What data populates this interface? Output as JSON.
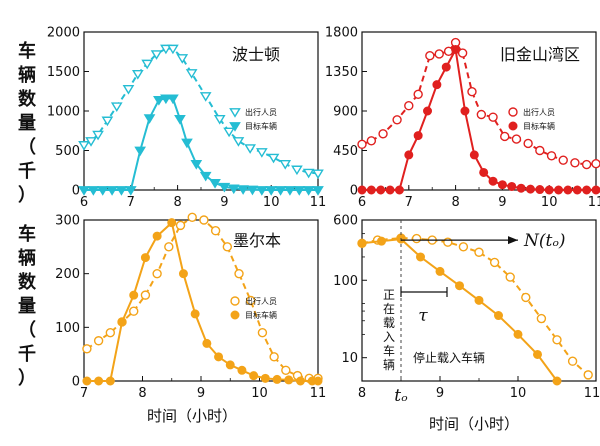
{
  "figure": {
    "y_label_chars": [
      "车",
      "辆",
      "数",
      "量",
      "（",
      "千",
      "）"
    ],
    "x_label": "时间（小时）"
  },
  "chart_data": [
    {
      "type": "line",
      "title": "波士顿",
      "color": "#25BDD3",
      "xlim": [
        6,
        11
      ],
      "ylim": [
        0,
        2000
      ],
      "x_ticks": [
        6,
        7,
        8,
        9,
        10,
        11
      ],
      "y_ticks": [
        0,
        500,
        1000,
        1500,
        2000
      ],
      "marker": "triangle",
      "legend_position": "right",
      "series": [
        {
          "name": "出行人员",
          "style": "dashed-open",
          "x": [
            6.0,
            6.15,
            6.3,
            6.5,
            6.7,
            6.95,
            7.15,
            7.35,
            7.55,
            7.75,
            7.9,
            8.1,
            8.3,
            8.6,
            8.9,
            9.1,
            9.3,
            9.55,
            9.8,
            10.05,
            10.3,
            10.55,
            10.8,
            11.0
          ],
          "y": [
            570,
            620,
            700,
            880,
            1060,
            1280,
            1470,
            1600,
            1720,
            1790,
            1790,
            1670,
            1480,
            1190,
            900,
            740,
            620,
            530,
            480,
            410,
            330,
            260,
            220,
            210
          ]
        },
        {
          "name": "目标车辆",
          "style": "solid-filled",
          "x": [
            6.0,
            6.2,
            6.4,
            6.6,
            6.8,
            7.0,
            7.2,
            7.4,
            7.6,
            7.75,
            7.9,
            8.05,
            8.2,
            8.4,
            8.6,
            8.8,
            9.0,
            9.2,
            9.4,
            9.6,
            9.8,
            10.0,
            10.2,
            10.4,
            10.6,
            10.8,
            11.0
          ],
          "y": [
            0,
            0,
            0,
            0,
            0,
            0,
            500,
            910,
            1140,
            1160,
            1160,
            900,
            600,
            330,
            180,
            90,
            40,
            20,
            10,
            5,
            0,
            0,
            0,
            0,
            0,
            0,
            0
          ]
        }
      ]
    },
    {
      "type": "line",
      "title": "旧金山湾区",
      "color": "#E0201F",
      "xlim": [
        6,
        11
      ],
      "ylim": [
        0,
        1800
      ],
      "x_ticks": [
        6,
        7,
        8,
        9,
        10,
        11
      ],
      "y_ticks": [
        0,
        450,
        900,
        1350,
        1800
      ],
      "marker": "circle",
      "legend_position": "right",
      "series": [
        {
          "name": "出行人员",
          "style": "dashed-open",
          "x": [
            6.0,
            6.2,
            6.45,
            6.75,
            7.0,
            7.2,
            7.45,
            7.65,
            7.85,
            8.0,
            8.15,
            8.35,
            8.55,
            8.8,
            9.05,
            9.3,
            9.55,
            9.8,
            10.05,
            10.3,
            10.55,
            10.8,
            11.0
          ],
          "y": [
            520,
            560,
            640,
            800,
            960,
            1090,
            1530,
            1550,
            1580,
            1680,
            1560,
            1120,
            860,
            830,
            610,
            580,
            530,
            450,
            390,
            340,
            310,
            290,
            300
          ]
        },
        {
          "name": "目标车辆",
          "style": "solid-filled",
          "x": [
            6.0,
            6.2,
            6.4,
            6.6,
            6.8,
            7.0,
            7.2,
            7.4,
            7.6,
            7.8,
            8.0,
            8.2,
            8.4,
            8.6,
            8.8,
            9.0,
            9.2,
            9.4,
            9.6,
            9.8,
            10.0,
            10.2,
            10.4,
            10.6,
            10.8,
            11.0
          ],
          "y": [
            0,
            0,
            0,
            0,
            0,
            400,
            620,
            900,
            1200,
            1400,
            1600,
            900,
            400,
            200,
            100,
            60,
            40,
            20,
            10,
            5,
            0,
            0,
            0,
            0,
            0,
            0
          ]
        }
      ]
    },
    {
      "type": "line",
      "title": "墨尔本",
      "color": "#F3A318",
      "xlim": [
        7,
        11
      ],
      "ylim": [
        0,
        300
      ],
      "x_ticks": [
        7,
        8,
        9,
        10,
        11
      ],
      "y_ticks": [
        0,
        100,
        200,
        300
      ],
      "marker": "circle",
      "legend_position": "right",
      "series": [
        {
          "name": "出行人员",
          "style": "dashed-open",
          "x": [
            7.05,
            7.25,
            7.45,
            7.65,
            7.85,
            8.05,
            8.25,
            8.45,
            8.65,
            8.85,
            9.05,
            9.25,
            9.45,
            9.65,
            9.85,
            10.05,
            10.25,
            10.45,
            10.65,
            10.85,
            11.0
          ],
          "y": [
            60,
            75,
            90,
            110,
            130,
            160,
            200,
            250,
            290,
            305,
            300,
            280,
            250,
            200,
            150,
            90,
            45,
            20,
            10,
            5,
            5
          ]
        },
        {
          "name": "目标车辆",
          "style": "solid-filled",
          "x": [
            7.05,
            7.25,
            7.45,
            7.65,
            7.85,
            8.05,
            8.25,
            8.5,
            8.7,
            8.9,
            9.1,
            9.3,
            9.5,
            9.7,
            9.9,
            10.1,
            10.3,
            10.5,
            10.7,
            10.9,
            11.0
          ],
          "y": [
            0,
            0,
            0,
            110,
            160,
            230,
            270,
            295,
            200,
            125,
            70,
            45,
            30,
            20,
            10,
            5,
            3,
            2,
            0,
            0,
            0
          ]
        }
      ]
    },
    {
      "type": "line",
      "title": "",
      "color": "#F3A318",
      "xlim": [
        8,
        11
      ],
      "ylim": [
        5,
        600
      ],
      "y_scale": "log",
      "x_ticks": [
        8,
        9,
        10,
        11
      ],
      "y_ticks": [
        10,
        100,
        600
      ],
      "marker": "circle",
      "series": [
        {
          "style": "dashed-open",
          "x": [
            8.0,
            8.2,
            8.5,
            8.7,
            8.9,
            9.1,
            9.3,
            9.5,
            9.7,
            9.9,
            10.1,
            10.3,
            10.5,
            10.7,
            10.9
          ],
          "y": [
            300,
            330,
            350,
            345,
            330,
            310,
            270,
            230,
            170,
            110,
            60,
            32,
            17,
            9,
            6
          ]
        },
        {
          "style": "solid-filled",
          "x": [
            8.0,
            8.25,
            8.5,
            8.75,
            9.0,
            9.25,
            9.5,
            9.75,
            10.0,
            10.25,
            10.5
          ],
          "y": [
            300,
            320,
            340,
            200,
            130,
            85,
            55,
            35,
            20,
            11,
            5
          ]
        }
      ],
      "annotations": {
        "vertical_label_a": "正在载入车辆",
        "vertical_label_b": "停止载入车辆",
        "tau_label": "τ",
        "arrow_label": "N(tₒ)",
        "x_marker_label": "tₒ"
      }
    }
  ]
}
